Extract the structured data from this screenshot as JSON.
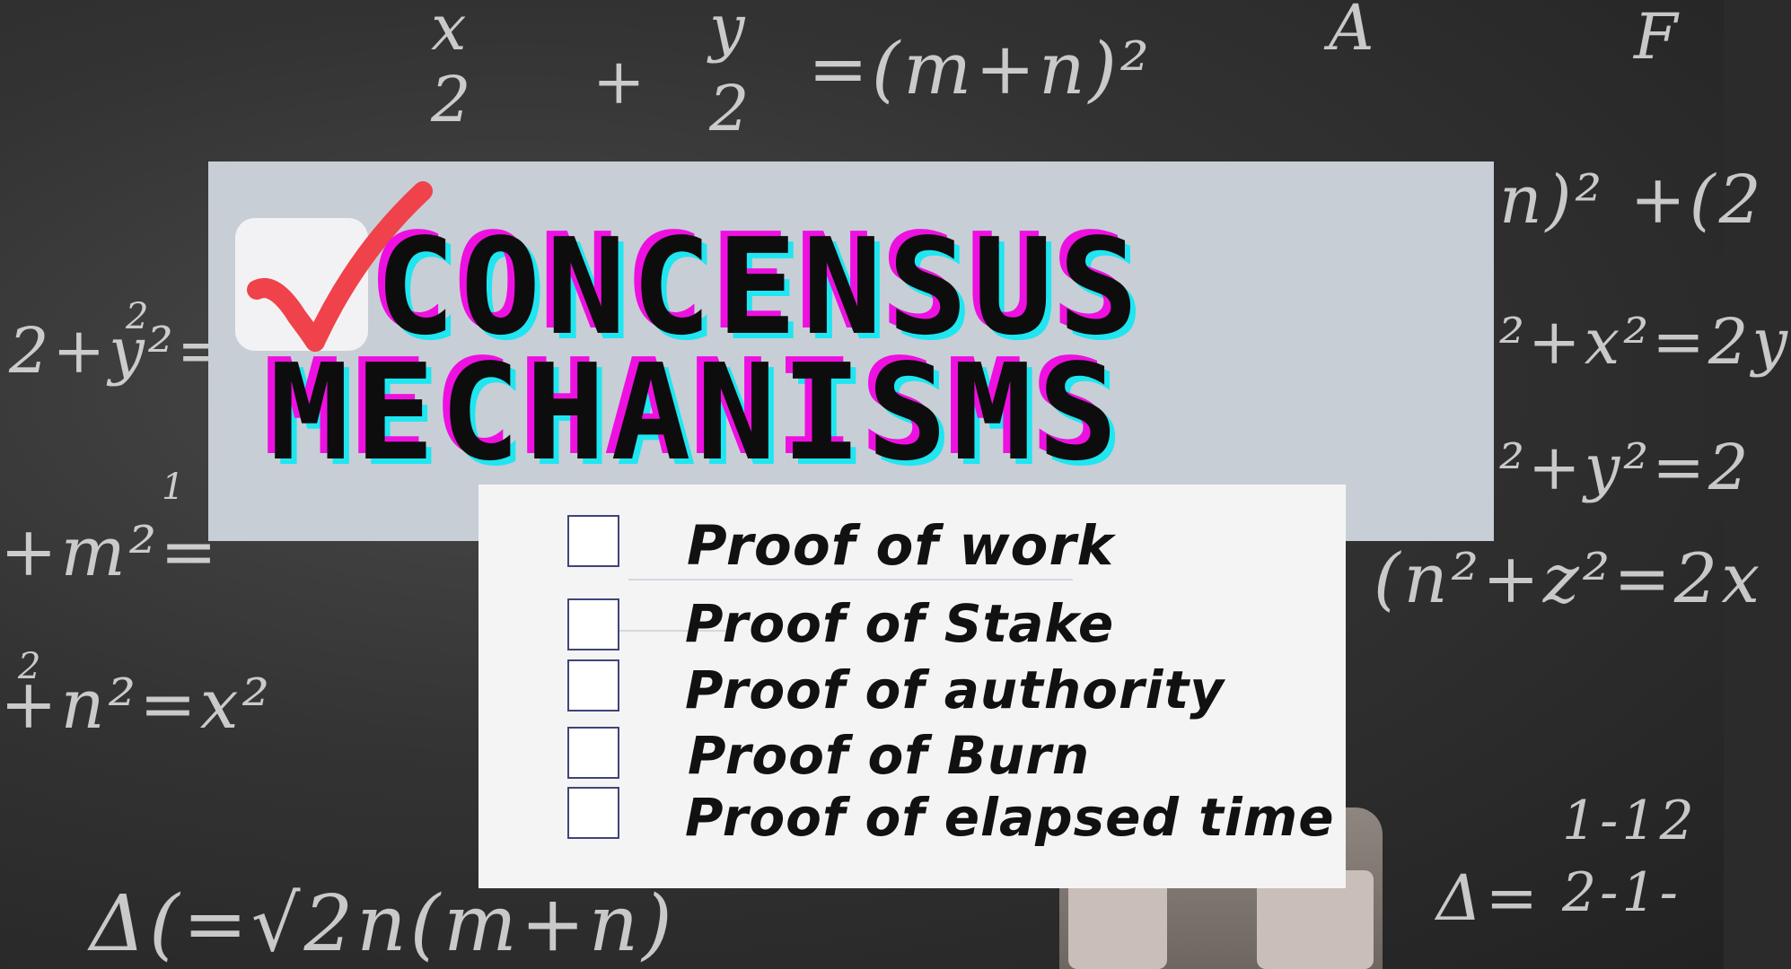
{
  "title": {
    "line1": "CONCENSUS",
    "line2": "MECHANISMS"
  },
  "checkmark_icon": "check-icon",
  "colors": {
    "title_text": "#0d0d0d",
    "title_shadow_magenta": "#ee10e0",
    "title_shadow_cyan": "#1fe6f0",
    "check_red": "#f0424a",
    "panel": "#c8ced6",
    "card": "#f4f4f5",
    "checkbox_border": "#3f4578"
  },
  "checklist": [
    {
      "label": "Proof of work",
      "checked": false
    },
    {
      "label": "Proof of Stake",
      "checked": false
    },
    {
      "label": "Proof of authority",
      "checked": false
    },
    {
      "label": "Proof of Burn",
      "checked": false
    },
    {
      "label": "Proof of elapsed time",
      "checked": false
    }
  ],
  "chalkboard": {
    "formulas": [
      "x",
      "y",
      "2",
      "2",
      "+",
      "=(m+n)²",
      "A",
      "F",
      "n)² +(2",
      "²+x²=2y",
      "²+y²=2",
      "(n²+z²=2x",
      "2+y²=",
      "+m²=",
      "+n²=x²",
      "Δ(=√2n(m+n)",
      "1-12",
      "2-1-",
      "Δ=",
      "2",
      "1",
      "2"
    ]
  }
}
